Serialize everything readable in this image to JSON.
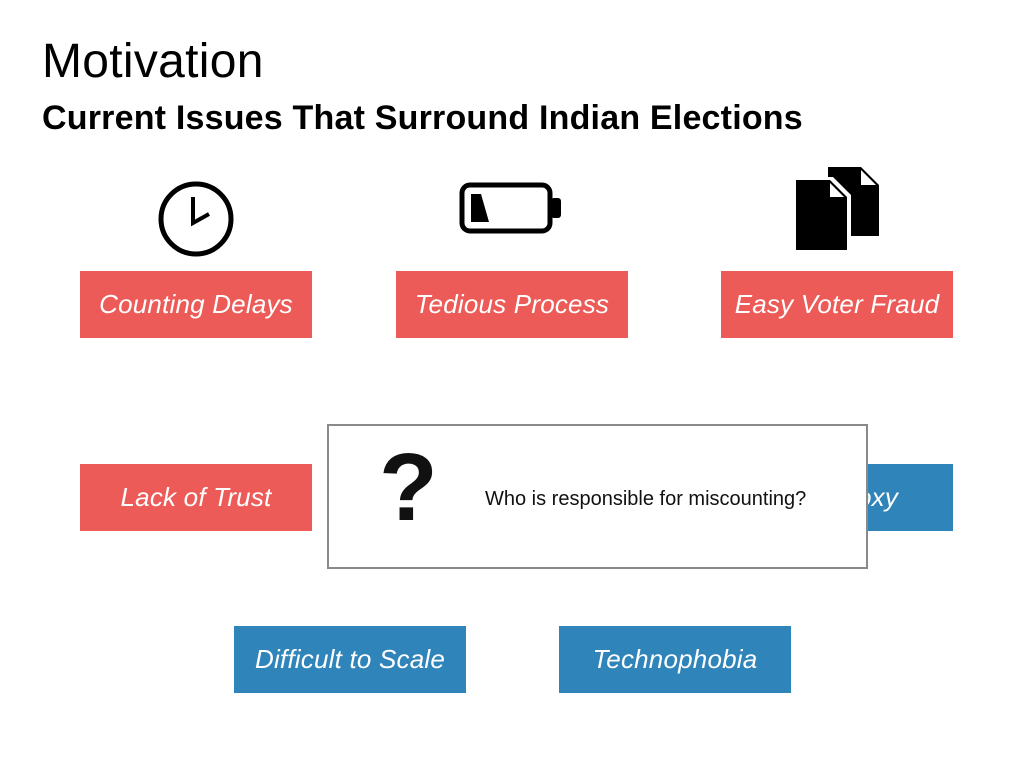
{
  "slide": {
    "title": "Motivation",
    "subtitle": "Current Issues That Surround Indian Elections"
  },
  "icons": [
    "clock-icon",
    "low-battery-icon",
    "copy-documents-icon"
  ],
  "issues_red": [
    {
      "label": "Counting Delays",
      "color": "#ec5b57"
    },
    {
      "label": "Tedious Process",
      "color": "#ec5b57"
    },
    {
      "label": "Easy Voter Fraud",
      "color": "#ec5b57"
    },
    {
      "label": "Lack of Trust",
      "color": "#ec5b57"
    }
  ],
  "issues_blue": [
    {
      "label": "oxy",
      "color": "#2f84b9"
    },
    {
      "label": "Difficult to Scale",
      "color": "#2f84b9"
    },
    {
      "label": "Technophobia",
      "color": "#2f84b9"
    }
  ],
  "popover": {
    "symbol": "?",
    "text": "Who is responsible for miscounting?"
  }
}
